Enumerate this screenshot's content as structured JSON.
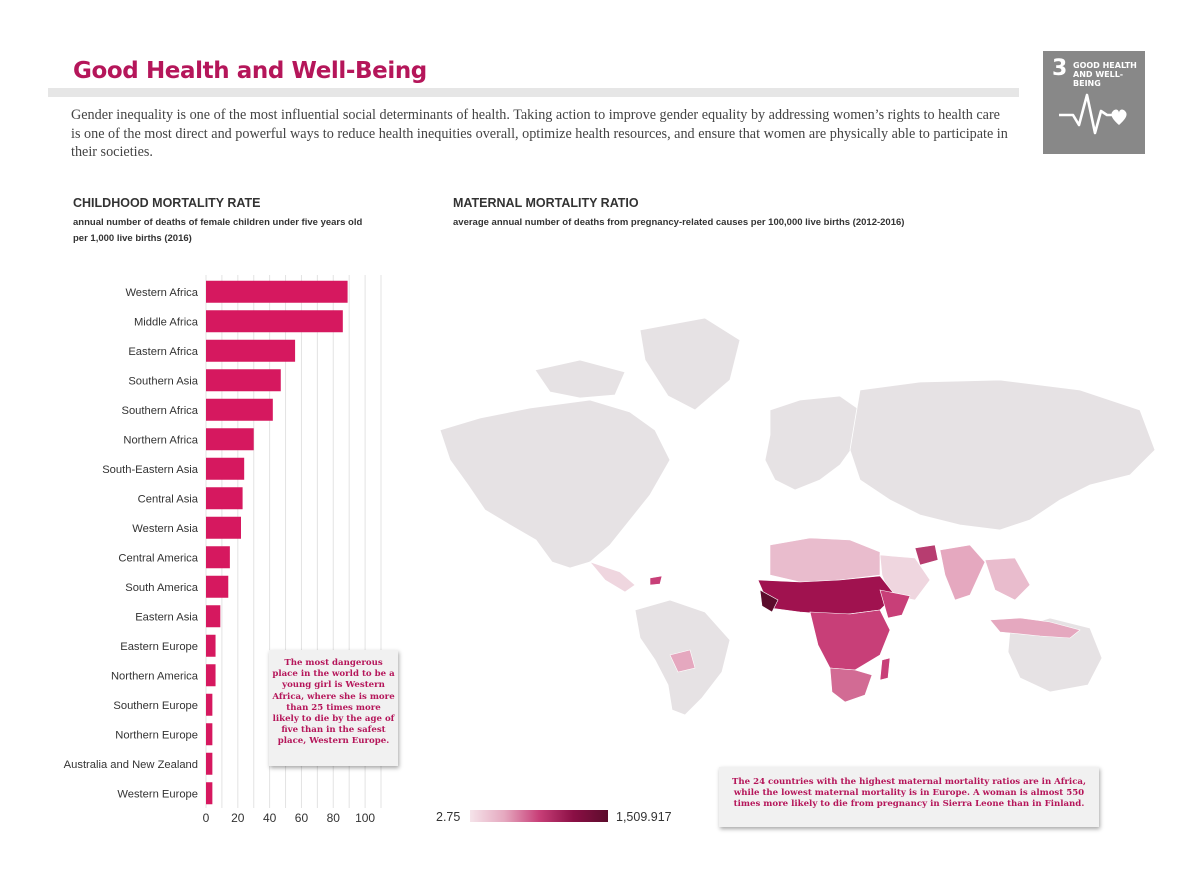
{
  "page": {
    "title": "Good Health and Well-Being",
    "intro": "Gender inequality is one of the most influential social determinants of health. Taking action to improve gender equality by addressing women’s rights to health care is one of the most direct and powerful ways to reduce health inequities overall, optimize health resources, and ensure that women are physically able to participate in their societies."
  },
  "sdg_badge": {
    "number": "3",
    "label_line1": "GOOD HEALTH",
    "label_line2": "AND WELL-BEING",
    "icon": "heartbeat-heart-icon",
    "color": "#888888"
  },
  "childhood": {
    "heading": "CHILDHOOD MORTALITY RATE",
    "subheading": "annual number of deaths of female children under five years old per 1,000 live births (2016)",
    "callout": "The most dangerous place in the world to be a young girl is Western Africa, where she is more than 25 times more likely to die by the age of five than in the safest place, Western Europe."
  },
  "maternal": {
    "heading": "MATERNAL MORTALITY RATIO",
    "subheading": "average annual number of deaths from pregnancy-related causes per 100,000 live births (2012-2016)",
    "callout": "The 24 countries with the highest maternal mortality ratios are in Africa, while the lowest maternal mortality is in Europe. A woman is almost 550 times more likely to die from pregnancy in Sierra Leone than in Finland.",
    "legend_min": "2.75",
    "legend_max": "1,509.917",
    "legend_colors": [
      "#f5e4ea",
      "#e5a8bf",
      "#c83f78",
      "#8b0f45",
      "#5c0c2c"
    ]
  },
  "chart_data": [
    {
      "type": "bar",
      "orientation": "horizontal",
      "title": "CHILDHOOD MORTALITY RATE",
      "subtitle": "annual number of deaths of female children under five years old per 1,000 live births (2016)",
      "categories": [
        "Western Africa",
        "Middle Africa",
        "Eastern Africa",
        "Southern Asia",
        "Southern Africa",
        "Northern Africa",
        "South-Eastern Asia",
        "Central Asia",
        "Western Asia",
        "Central America",
        "South America",
        "Eastern Asia",
        "Eastern Europe",
        "Northern America",
        "Southern Europe",
        "Northern Europe",
        "Australia and New Zealand",
        "Western Europe"
      ],
      "values": [
        89,
        86,
        56,
        47,
        42,
        30,
        24,
        23,
        22,
        15,
        14,
        9,
        6,
        6,
        4,
        4,
        4,
        4
      ],
      "xlim": [
        0,
        110
      ],
      "xticks": [
        0,
        20,
        40,
        60,
        80,
        100
      ],
      "grid": true,
      "bar_color": "#d6185f"
    },
    {
      "type": "choropleth",
      "title": "MATERNAL MORTALITY RATIO",
      "subtitle": "average annual number of deaths from pregnancy-related causes per 100,000 live births (2012-2016)",
      "value_range": [
        2.75,
        1509.917
      ],
      "color_scale": [
        "#f5e4ea",
        "#5c0c2c"
      ]
    }
  ]
}
